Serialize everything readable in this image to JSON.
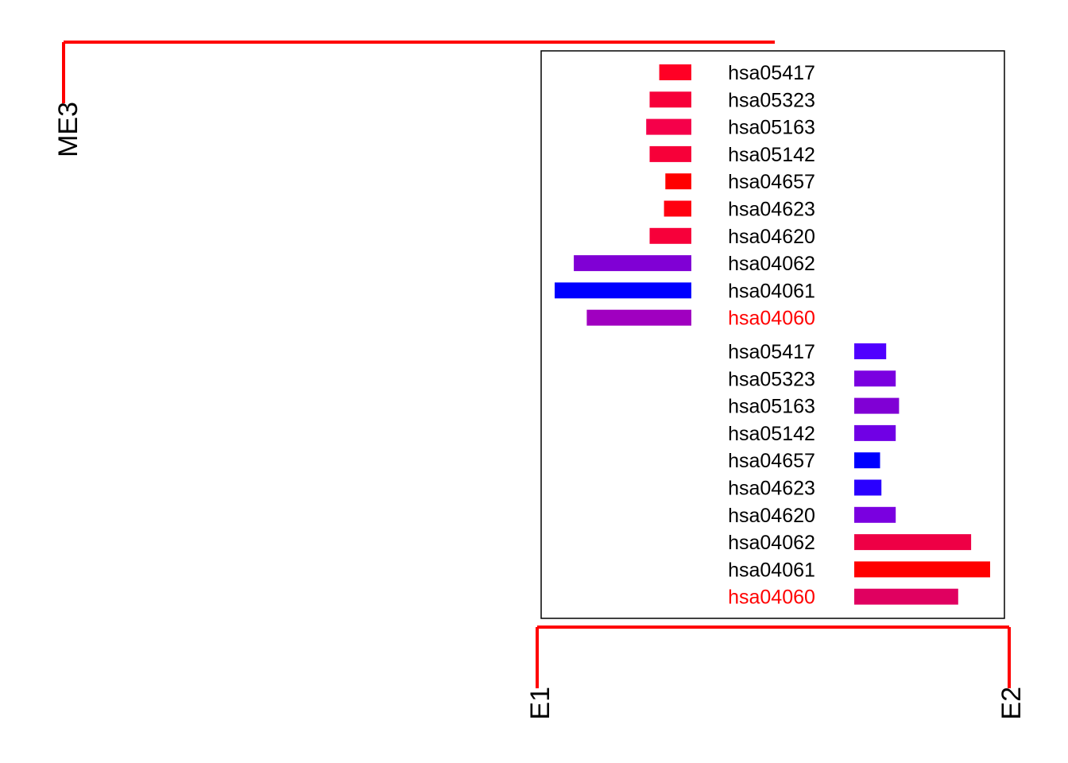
{
  "chart_data": {
    "type": "bar",
    "orientation": "horizontal",
    "grid": false,
    "dendrogram_color": "#ff0000",
    "highlight_color": "#ff0000",
    "label_color": "#000000",
    "dendrogram_labels": {
      "left": "ME3",
      "bottom_left": "E1",
      "bottom_right": "E2"
    },
    "groups": [
      {
        "name": "E1",
        "direction": "left",
        "labels": [
          "hsa05417",
          "hsa05323",
          "hsa05163",
          "hsa05142",
          "hsa04657",
          "hsa04623",
          "hsa04620",
          "hsa04062",
          "hsa04061",
          "hsa04060"
        ],
        "values": [
          0.235,
          0.305,
          0.33,
          0.305,
          0.19,
          0.2,
          0.305,
          0.86,
          1.0,
          0.765
        ],
        "colors": [
          "#ff0025",
          "#f70039",
          "#f5004a",
          "#f70039",
          "#ff0000",
          "#ff0010",
          "#f7003a",
          "#8000d5",
          "#0000ff",
          "#a000c0"
        ],
        "highlight_index": 9
      },
      {
        "name": "E2",
        "direction": "right",
        "labels": [
          "hsa05417",
          "hsa05323",
          "hsa05163",
          "hsa05142",
          "hsa04657",
          "hsa04623",
          "hsa04620",
          "hsa04062",
          "hsa04061",
          "hsa04060"
        ],
        "values": [
          0.235,
          0.305,
          0.33,
          0.305,
          0.19,
          0.2,
          0.305,
          0.86,
          1.0,
          0.765
        ],
        "colors": [
          "#5000ff",
          "#7a00e0",
          "#8000d5",
          "#7000e5",
          "#0000ff",
          "#2a00ff",
          "#7a00e0",
          "#ee0045",
          "#ff0000",
          "#e00060"
        ],
        "highlight_index": 9
      }
    ]
  }
}
